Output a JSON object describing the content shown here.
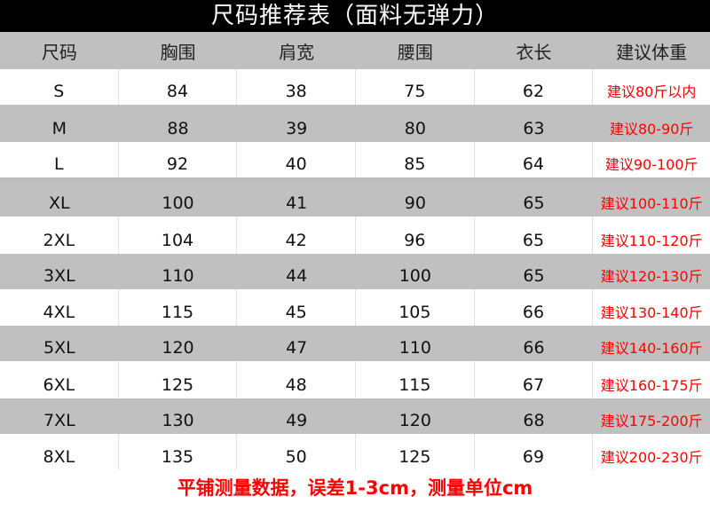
{
  "title": "尺码推荐表（面料无弹力）",
  "headers": [
    "尺码",
    "胸围",
    "肩宽",
    "腰围",
    "衣长",
    "建议体重"
  ],
  "rows": [
    [
      "S",
      "84",
      "38",
      "75",
      "62",
      "建议80斤以内"
    ],
    [
      "M",
      "88",
      "39",
      "80",
      "63",
      "建议80-90斤"
    ],
    [
      "L",
      "92",
      "40",
      "85",
      "64",
      "建议90-100斤"
    ],
    [
      "XL",
      "100",
      "41",
      "90",
      "65",
      "建议100-110斤"
    ],
    [
      "2XL",
      "104",
      "42",
      "96",
      "65",
      "建议110-120斤"
    ],
    [
      "3XL",
      "110",
      "44",
      "100",
      "65",
      "建议120-130斤"
    ],
    [
      "4XL",
      "115",
      "45",
      "105",
      "66",
      "建议130-140斤"
    ],
    [
      "5XL",
      "120",
      "47",
      "110",
      "66",
      "建议140-160斤"
    ],
    [
      "6XL",
      "125",
      "48",
      "115",
      "67",
      "建议160-175斤"
    ],
    [
      "7XL",
      "130",
      "49",
      "120",
      "68",
      "建议175-200斤"
    ],
    [
      "8XL",
      "135",
      "50",
      "125",
      "69",
      "建议200-230斤"
    ]
  ],
  "footer": "平铺测量数据，误差1-3cm，测量单位cm",
  "colors": {
    "title_bg": "#000000",
    "stripe": "#c0c0c0",
    "weight_text": "#ff0000"
  }
}
